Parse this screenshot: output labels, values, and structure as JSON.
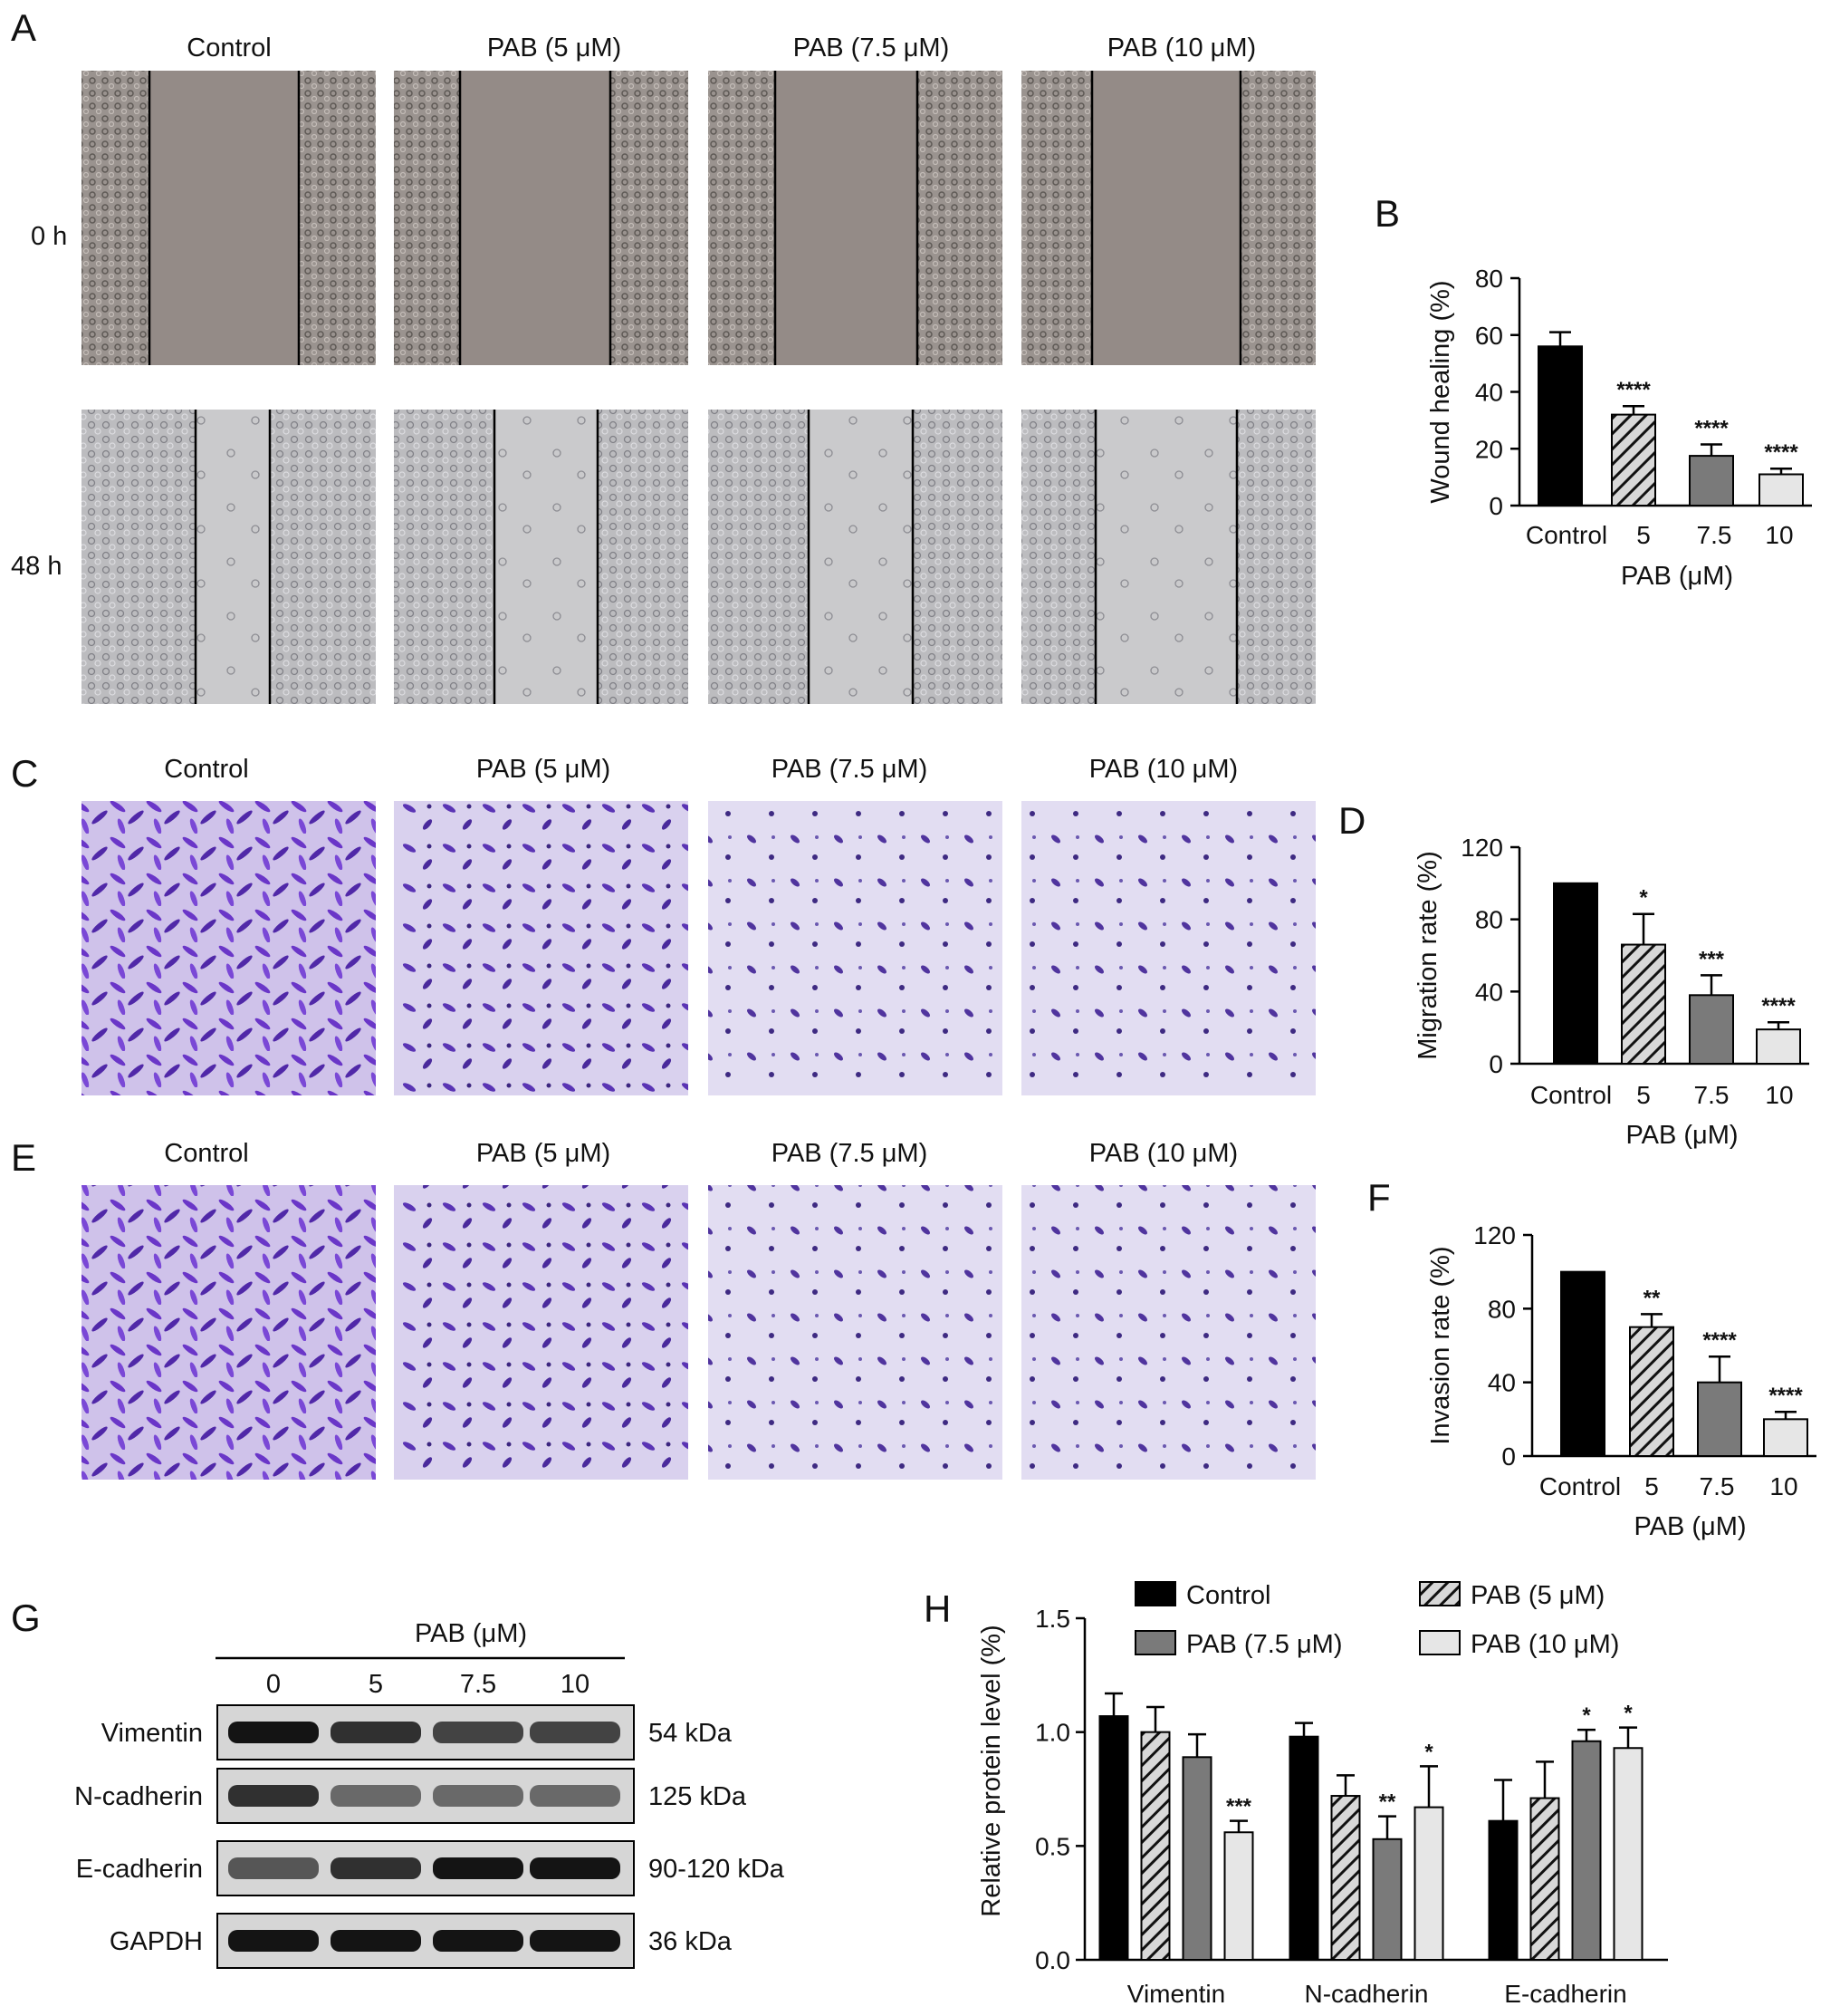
{
  "panel_letters": [
    "A",
    "B",
    "C",
    "D",
    "E",
    "F",
    "G",
    "H"
  ],
  "column_headers": [
    "Control",
    "PAB (5 μM)",
    "PAB (7.5 μM)",
    "PAB (10 μM)"
  ],
  "row_labels": [
    "0 h",
    "48 h"
  ],
  "fill_styles": {
    "Control": "#000000",
    "PAB (5 μM)": "hatched",
    "PAB (7.5 μM)": "#7a7a7a",
    "PAB (10 μM)": "#e6e6e6"
  },
  "chart_data": [
    {
      "panel": "B",
      "type": "bar",
      "categories": [
        "Control",
        "5",
        "7.5",
        "10"
      ],
      "values": [
        56,
        32,
        17.5,
        11
      ],
      "errors": [
        5,
        3,
        4,
        2
      ],
      "significance": [
        "",
        "****",
        "****",
        "****"
      ],
      "ylabel": "Wound healing (%)",
      "xlabel": "PAB (μM)",
      "ylim": [
        0,
        80
      ],
      "yticks": [
        0,
        20,
        40,
        60,
        80
      ]
    },
    {
      "panel": "D",
      "type": "bar",
      "categories": [
        "Control",
        "5",
        "7.5",
        "10"
      ],
      "values": [
        100,
        66,
        38,
        19
      ],
      "errors": [
        0,
        17,
        11,
        4
      ],
      "significance": [
        "",
        "*",
        "***",
        "****"
      ],
      "ylabel": "Migration rate (%)",
      "xlabel": "PAB (μM)",
      "ylim": [
        0,
        120
      ],
      "yticks": [
        0,
        40,
        80,
        120
      ]
    },
    {
      "panel": "F",
      "type": "bar",
      "categories": [
        "Control",
        "5",
        "7.5",
        "10"
      ],
      "values": [
        100,
        70,
        40,
        20
      ],
      "errors": [
        0,
        7,
        14,
        4
      ],
      "significance": [
        "",
        "**",
        "****",
        "****"
      ],
      "ylabel": "Invasion rate (%)",
      "xlabel": "PAB (μM)",
      "ylim": [
        0,
        120
      ],
      "yticks": [
        0,
        40,
        80,
        120
      ]
    },
    {
      "panel": "H",
      "type": "bar",
      "categories": [
        "Vimentin",
        "N-cadherin",
        "E-cadherin"
      ],
      "series": [
        {
          "name": "Control",
          "values": [
            1.07,
            0.98,
            0.61
          ],
          "errors": [
            0.1,
            0.06,
            0.18
          ],
          "significance": [
            "",
            "",
            ""
          ]
        },
        {
          "name": "PAB (5 μM)",
          "values": [
            1.0,
            0.72,
            0.71
          ],
          "errors": [
            0.11,
            0.09,
            0.16
          ],
          "significance": [
            "",
            "",
            ""
          ]
        },
        {
          "name": "PAB (7.5 μM)",
          "values": [
            0.89,
            0.53,
            0.96
          ],
          "errors": [
            0.1,
            0.1,
            0.05
          ],
          "significance": [
            "",
            "**",
            "*"
          ]
        },
        {
          "name": "PAB (10 μM)",
          "values": [
            0.56,
            0.67,
            0.93
          ],
          "errors": [
            0.05,
            0.18,
            0.09
          ],
          "significance": [
            "***",
            "*",
            "*"
          ]
        }
      ],
      "ylabel": "Relative protein level (%)",
      "ylim": [
        0,
        1.5
      ],
      "yticks": [
        "0.0",
        "0.5",
        "1.0",
        "1.5"
      ],
      "legend": "top"
    }
  ],
  "western_blot": {
    "header": "PAB (μM)",
    "lanes": [
      "0",
      "5",
      "7.5",
      "10"
    ],
    "proteins": [
      {
        "name": "Vimentin",
        "size": "54 kDa",
        "intensity": [
          0.95,
          0.8,
          0.7,
          0.7
        ]
      },
      {
        "name": "N-cadherin",
        "size": "125 kDa",
        "intensity": [
          0.8,
          0.5,
          0.5,
          0.5
        ]
      },
      {
        "name": "E-cadherin",
        "size": "90-120 kDa",
        "intensity": [
          0.6,
          0.8,
          0.95,
          0.95
        ]
      },
      {
        "name": "GAPDH",
        "size": "36 kDa",
        "intensity": [
          0.95,
          0.95,
          0.95,
          0.95
        ]
      }
    ]
  }
}
